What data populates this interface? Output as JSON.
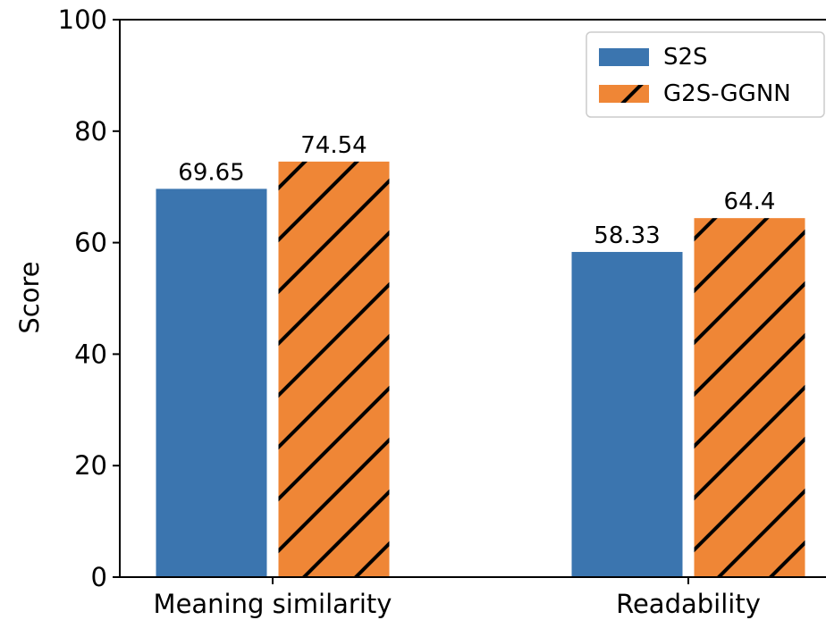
{
  "chart_data": {
    "type": "bar",
    "title": "",
    "xlabel": "",
    "ylabel": "Score",
    "ylim": [
      0,
      100
    ],
    "yticks": [
      0,
      20,
      40,
      60,
      80,
      100
    ],
    "categories": [
      "Meaning similarity",
      "Readability"
    ],
    "series": [
      {
        "name": "S2S",
        "values": [
          69.65,
          58.33
        ],
        "value_labels": [
          "69.65",
          "58.33"
        ],
        "color": "#3b75af",
        "hatch": "none"
      },
      {
        "name": "G2S-GGNN",
        "values": [
          74.54,
          64.4
        ],
        "value_labels": [
          "74.54",
          "64.4"
        ],
        "color": "#ef8636",
        "hatch": "diagonal"
      }
    ],
    "legend_position": "top-right",
    "grid": false
  }
}
